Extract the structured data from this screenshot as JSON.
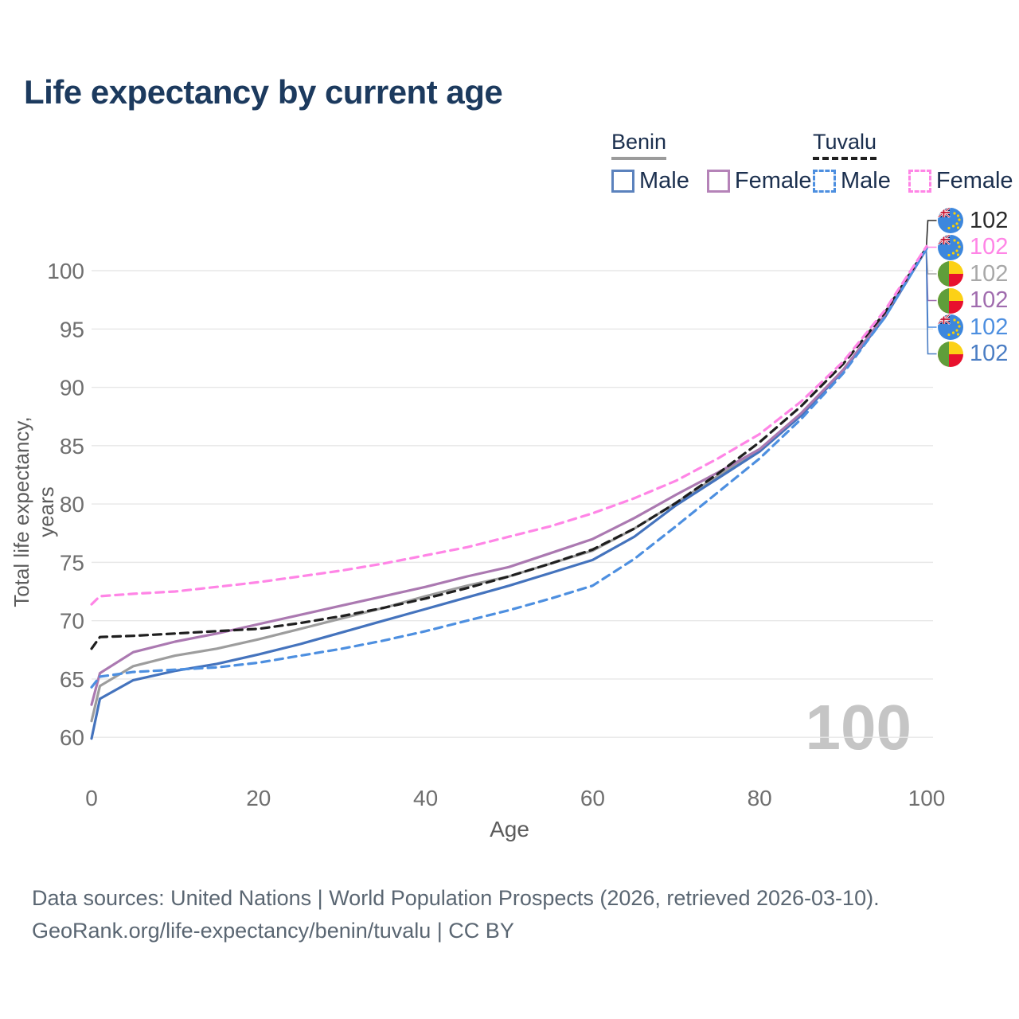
{
  "title": "Life expectancy by current age",
  "legend": {
    "groups": [
      {
        "country": "Benin",
        "line_style": "solid",
        "underline_color": "#9b9b9b",
        "items": [
          {
            "label": "Male",
            "color": "#5b82bd",
            "dashed": false
          },
          {
            "label": "Female",
            "color": "#b583b8",
            "dashed": false
          }
        ]
      },
      {
        "country": "Tuvalu",
        "line_style": "dashed",
        "underline_color": "#1f1f1f",
        "items": [
          {
            "label": "Male",
            "color": "#4d8fe0",
            "dashed": true
          },
          {
            "label": "Female",
            "color": "#ff85e6",
            "dashed": true
          }
        ]
      }
    ]
  },
  "chart_data": {
    "type": "line",
    "title": "Life expectancy by current age",
    "xlabel": "Age",
    "ylabel": "Total life expectancy, years",
    "xlim": [
      0,
      100
    ],
    "ylim": [
      57.5,
      103
    ],
    "xticks": [
      0,
      20,
      40,
      60,
      80,
      100
    ],
    "yticks": [
      60,
      65,
      70,
      75,
      80,
      85,
      90,
      95,
      100
    ],
    "grid": "horizontal-only",
    "legend_position": "top-right",
    "watermark": "100",
    "x": [
      0,
      1,
      5,
      10,
      15,
      20,
      25,
      30,
      35,
      40,
      45,
      50,
      55,
      60,
      65,
      70,
      75,
      80,
      85,
      90,
      95,
      100
    ],
    "series": [
      {
        "name": "Benin — Total",
        "country": "Benin",
        "color": "#9d9d9d",
        "dash": false,
        "values": [
          61.4,
          64.4,
          66.1,
          67.0,
          67.6,
          68.4,
          69.3,
          70.2,
          71.1,
          72.1,
          73.0,
          73.8,
          74.9,
          76.0,
          77.9,
          80.1,
          82.4,
          84.6,
          87.7,
          91.5,
          96.1,
          101.9
        ]
      },
      {
        "name": "Benin — Male",
        "country": "Benin",
        "color": "#4473bd",
        "dash": false,
        "values": [
          59.9,
          63.3,
          64.9,
          65.7,
          66.3,
          67.1,
          68.0,
          69.0,
          70.0,
          71.0,
          72.0,
          73.0,
          74.1,
          75.2,
          77.2,
          79.9,
          82.2,
          84.5,
          87.6,
          91.4,
          96.0,
          101.9
        ]
      },
      {
        "name": "Benin — Female",
        "country": "Benin",
        "color": "#ab79b1",
        "dash": false,
        "values": [
          62.8,
          65.5,
          67.3,
          68.2,
          68.9,
          69.7,
          70.5,
          71.3,
          72.1,
          72.9,
          73.8,
          74.6,
          75.8,
          77.0,
          78.8,
          80.8,
          82.7,
          84.7,
          87.8,
          91.5,
          96.2,
          102.0
        ]
      },
      {
        "name": "Tuvalu — Total",
        "country": "Tuvalu",
        "color": "#1f1f1f",
        "dash": true,
        "values": [
          67.6,
          68.6,
          68.7,
          68.9,
          69.1,
          69.3,
          69.8,
          70.4,
          71.1,
          71.9,
          72.8,
          73.8,
          74.9,
          76.1,
          77.9,
          80.1,
          82.6,
          85.3,
          88.4,
          92.0,
          96.4,
          102.0
        ]
      },
      {
        "name": "Tuvalu — Male",
        "country": "Tuvalu",
        "color": "#4d8fe0",
        "dash": true,
        "values": [
          64.3,
          65.2,
          65.6,
          65.8,
          66.0,
          66.4,
          67.0,
          67.6,
          68.3,
          69.1,
          70.0,
          70.9,
          71.9,
          73.0,
          75.3,
          78.1,
          81.0,
          83.9,
          87.3,
          91.2,
          96.0,
          101.9
        ]
      },
      {
        "name": "Tuvalu — Female",
        "country": "Tuvalu",
        "color": "#ff85e6",
        "dash": true,
        "values": [
          71.4,
          72.1,
          72.3,
          72.5,
          72.9,
          73.3,
          73.8,
          74.3,
          74.9,
          75.6,
          76.3,
          77.2,
          78.1,
          79.2,
          80.5,
          82.0,
          83.9,
          86.0,
          88.8,
          92.2,
          96.6,
          102.1
        ]
      }
    ],
    "end_labels": [
      {
        "series": "Tuvalu — Total",
        "country": "Tuvalu",
        "value": "102",
        "color": "#2b2b2b"
      },
      {
        "series": "Tuvalu — Female",
        "country": "Tuvalu",
        "value": "102",
        "color": "#ff85e6"
      },
      {
        "series": "Benin — Total",
        "country": "Benin",
        "value": "102",
        "color": "#a8a8a8"
      },
      {
        "series": "Benin — Female",
        "country": "Benin",
        "value": "102",
        "color": "#a06cae"
      },
      {
        "series": "Tuvalu — Male",
        "country": "Tuvalu",
        "value": "102",
        "color": "#4d8fe0"
      },
      {
        "series": "Benin — Male",
        "country": "Benin",
        "value": "102",
        "color": "#4b7ec4"
      }
    ]
  },
  "footer": {
    "line1": "Data sources: United Nations | World Population Prospects (2026, retrieved 2026-03-10).",
    "line2": "GeoRank.org/life-expectancy/benin/tuvalu | CC BY"
  }
}
